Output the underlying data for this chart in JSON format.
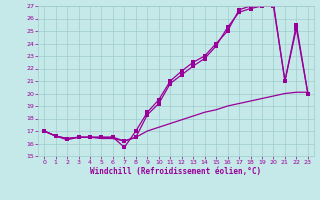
{
  "xlabel": "Windchill (Refroidissement éolien,°C)",
  "xlim": [
    -0.5,
    23.5
  ],
  "ylim": [
    15,
    27
  ],
  "yticks": [
    15,
    16,
    17,
    18,
    19,
    20,
    21,
    22,
    23,
    24,
    25,
    26,
    27
  ],
  "xticks": [
    0,
    1,
    2,
    3,
    4,
    5,
    6,
    7,
    8,
    9,
    10,
    11,
    12,
    13,
    14,
    15,
    16,
    17,
    18,
    19,
    20,
    21,
    22,
    23
  ],
  "bg_color": "#c5e8e8",
  "grid_color": "#a0cccc",
  "line_color": "#990099",
  "line1_x": [
    0,
    1,
    2,
    3,
    4,
    5,
    6,
    7,
    8,
    9,
    10,
    11,
    12,
    13,
    14,
    15,
    16,
    17,
    18,
    19,
    20,
    21,
    22,
    23
  ],
  "line1_y": [
    17.0,
    16.6,
    16.4,
    16.5,
    16.5,
    16.5,
    16.5,
    15.7,
    17.0,
    18.5,
    19.5,
    21.0,
    21.8,
    22.5,
    23.0,
    24.0,
    25.0,
    26.7,
    27.0,
    27.0,
    27.2,
    21.0,
    25.5,
    20.0
  ],
  "line2_x": [
    0,
    1,
    2,
    3,
    4,
    5,
    6,
    7,
    8,
    9,
    10,
    11,
    12,
    13,
    14,
    15,
    16,
    17,
    18,
    19,
    20,
    21,
    22,
    23
  ],
  "line2_y": [
    17.0,
    16.6,
    16.4,
    16.5,
    16.5,
    16.5,
    16.5,
    16.2,
    16.5,
    18.3,
    19.2,
    20.8,
    21.5,
    22.2,
    22.8,
    23.8,
    25.3,
    26.5,
    26.8,
    27.0,
    27.0,
    21.0,
    25.2,
    20.0
  ],
  "line3_x": [
    0,
    1,
    2,
    3,
    4,
    5,
    6,
    7,
    8,
    9,
    10,
    11,
    12,
    13,
    14,
    15,
    16,
    17,
    18,
    19,
    20,
    21,
    22,
    23
  ],
  "line3_y": [
    17.0,
    16.6,
    16.3,
    16.5,
    16.5,
    16.4,
    16.4,
    16.2,
    16.5,
    17.0,
    17.3,
    17.6,
    17.9,
    18.2,
    18.5,
    18.7,
    19.0,
    19.2,
    19.4,
    19.6,
    19.8,
    20.0,
    20.1,
    20.1
  ]
}
